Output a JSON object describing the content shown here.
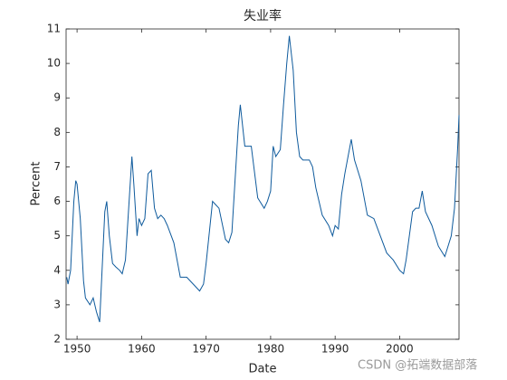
{
  "chart_data": {
    "type": "line",
    "title": "失业率",
    "x_label": "Date",
    "y_label": "Percent",
    "watermark": "CSDN @拓端数据部落",
    "x": [
      1948.4,
      1948.6,
      1949.0,
      1949.5,
      1949.8,
      1950.0,
      1950.5,
      1951.0,
      1951.3,
      1952.0,
      1952.5,
      1953.0,
      1953.5,
      1954.0,
      1954.3,
      1954.6,
      1955.0,
      1955.5,
      1956.0,
      1956.6,
      1957.0,
      1957.5,
      1958.0,
      1958.5,
      1958.8,
      1959.3,
      1959.6,
      1960.0,
      1960.5,
      1961.0,
      1961.5,
      1962.0,
      1962.5,
      1963.0,
      1963.5,
      1964.0,
      1965.0,
      1966.0,
      1967.0,
      1968.0,
      1969.0,
      1969.6,
      1970.0,
      1971.0,
      1971.5,
      1972.0,
      1973.0,
      1973.5,
      1974.0,
      1975.0,
      1975.3,
      1976.0,
      1977.0,
      1978.0,
      1979.0,
      1979.5,
      1980.0,
      1980.4,
      1980.8,
      1981.5,
      1982.0,
      1982.5,
      1982.9,
      1983.5,
      1984.0,
      1984.5,
      1985.0,
      1986.0,
      1986.5,
      1987.0,
      1988.0,
      1989.0,
      1989.6,
      1990.0,
      1990.5,
      1991.0,
      1991.5,
      1992.5,
      1993.0,
      1994.0,
      1995.0,
      1996.0,
      1997.0,
      1998.0,
      1999.0,
      2000.0,
      2000.6,
      2001.0,
      2002.0,
      2002.5,
      2003.0,
      2003.5,
      2004.0,
      2005.0,
      2006.0,
      2007.0,
      2007.5,
      2008.0,
      2008.5,
      2009.0,
      2009.2
    ],
    "series": [
      {
        "name": "Percent",
        "color": "#0e5a9c",
        "values": [
          3.8,
          3.6,
          4.0,
          6.0,
          6.6,
          6.5,
          5.5,
          3.7,
          3.2,
          3.0,
          3.2,
          2.8,
          2.5,
          4.5,
          5.7,
          6.0,
          5.0,
          4.2,
          4.1,
          4.0,
          3.9,
          4.3,
          5.8,
          7.3,
          6.5,
          5.0,
          5.5,
          5.3,
          5.5,
          6.8,
          6.9,
          5.8,
          5.5,
          5.6,
          5.5,
          5.3,
          4.8,
          3.8,
          3.8,
          3.6,
          3.4,
          3.6,
          4.2,
          6.0,
          5.9,
          5.8,
          4.9,
          4.8,
          5.1,
          8.2,
          8.8,
          7.6,
          7.6,
          6.1,
          5.8,
          6.0,
          6.3,
          7.6,
          7.3,
          7.5,
          8.8,
          10.0,
          10.8,
          9.8,
          8.0,
          7.3,
          7.2,
          7.2,
          7.0,
          6.4,
          5.6,
          5.3,
          5.0,
          5.3,
          5.2,
          6.2,
          6.8,
          7.8,
          7.2,
          6.6,
          5.6,
          5.5,
          5.0,
          4.5,
          4.3,
          4.0,
          3.9,
          4.3,
          5.7,
          5.8,
          5.8,
          6.3,
          5.7,
          5.3,
          4.7,
          4.4,
          4.7,
          5.0,
          5.8,
          7.6,
          8.5
        ]
      }
    ],
    "xlim": [
      1948.3,
      2009.2
    ],
    "ylim": [
      2,
      11
    ],
    "xticks": [
      1950,
      1960,
      1970,
      1980,
      1990,
      2000
    ],
    "yticks": [
      2,
      3,
      4,
      5,
      6,
      7,
      8,
      9,
      10,
      11
    ]
  }
}
